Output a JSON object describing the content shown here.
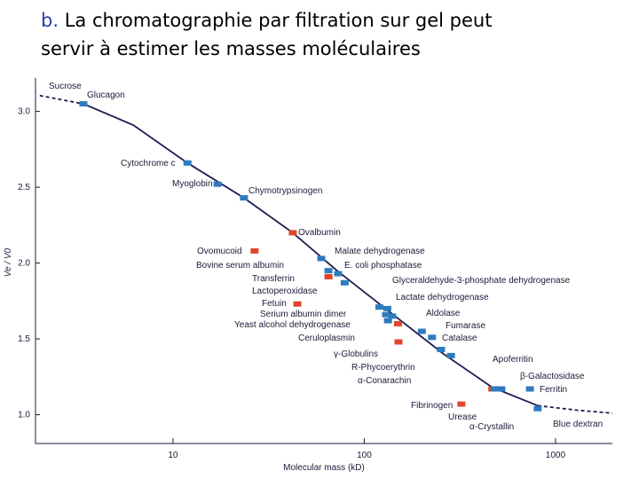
{
  "chart_data": {
    "type": "scatter",
    "title_prefix": "b.",
    "title_lines": [
      "La chromatographie par filtration sur gel peut",
      "servir à estimer les masses moléculaires"
    ],
    "xlabel": "Molecular mass (kD)",
    "ylabel": "Ve / V0",
    "xscale": "log",
    "xlim": [
      1.91,
      1983
    ],
    "ylim": [
      0.81,
      3.22
    ],
    "xticks": [
      10,
      100,
      1000
    ],
    "yticks": [
      {
        "value": 1,
        "label": "1.0"
      },
      1.5,
      {
        "value": 2,
        "label": "2.0"
      },
      2.5,
      {
        "value": 3,
        "label": "3.0"
      }
    ],
    "curve": {
      "color": "#1c1c50",
      "x": [
        2.01,
        3.4,
        6.2,
        11.9,
        23.5,
        42.3,
        72,
        132,
        260,
        467,
        807,
        1292,
        1983
      ],
      "y": [
        3.105,
        3.05,
        2.91,
        2.66,
        2.43,
        2.2,
        1.95,
        1.69,
        1.4,
        1.18,
        1.06,
        1.03,
        1.01
      ]
    },
    "colors": {
      "blue": "#2e7bbf",
      "red": "#e2452b"
    },
    "points": [
      {
        "label": "Glucagon",
        "x": 3.4,
        "y": 3.05,
        "color": "blue"
      },
      {
        "label": "Cytochrome c",
        "x": 11.9,
        "y": 2.66,
        "color": "blue"
      },
      {
        "label": "Myoglobin",
        "x": 17.1,
        "y": 2.52,
        "color": "blue"
      },
      {
        "label": "Chymotrypsinogen",
        "x": 23.5,
        "y": 2.43,
        "color": "blue"
      },
      {
        "label": "Ovalbumin",
        "x": 42.3,
        "y": 2.2,
        "color": "red"
      },
      {
        "label": "Ovomucoid",
        "x": 26.7,
        "y": 2.08,
        "color": "red"
      },
      {
        "label": "Malate dehydrogenase",
        "x": 59.6,
        "y": 2.03,
        "color": "blue"
      },
      {
        "label": "Bovine serum albumin",
        "x": 65,
        "y": 1.95,
        "color": "blue"
      },
      {
        "label": "E. coli phosphatase",
        "x": 73,
        "y": 1.93,
        "color": "blue"
      },
      {
        "label": "Transferrin",
        "x": 65,
        "y": 1.91,
        "color": "red"
      },
      {
        "label": "Glyceraldehyde-3-phosphate dehydrogenase",
        "x": 120,
        "y": 1.71,
        "color": "blue"
      },
      {
        "label": "Lactoperoxidase",
        "x": 79,
        "y": 1.87,
        "color": "blue"
      },
      {
        "label": "Lactate dehydrogenase",
        "x": 132,
        "y": 1.7,
        "color": "blue"
      },
      {
        "label": "Fetuin",
        "x": 44.7,
        "y": 1.73,
        "color": "red"
      },
      {
        "label": "Serium albumin dimer",
        "x": 130,
        "y": 1.66,
        "color": "blue"
      },
      {
        "label": "Aldolase",
        "x": 140,
        "y": 1.65,
        "color": "blue"
      },
      {
        "label": "Yeast alcohol dehydrogenase",
        "x": 133,
        "y": 1.62,
        "color": "blue"
      },
      {
        "label": "Fumarase",
        "x": 200,
        "y": 1.55,
        "color": "blue"
      },
      {
        "label": "Ceruloplasmin",
        "x": 151,
        "y": 1.48,
        "color": "red"
      },
      {
        "label": "Catalase",
        "x": 226,
        "y": 1.51,
        "color": "blue"
      },
      {
        "label": "γ-Globulins",
        "x": 150,
        "y": 1.6,
        "color": "red"
      },
      {
        "label": "R-Phycoerythrin",
        "x": 252,
        "y": 1.43,
        "color": "blue"
      },
      {
        "label": "α-Conarachin",
        "x": 284,
        "y": 1.39,
        "color": "blue"
      },
      {
        "label": "Apoferritin",
        "x": 467,
        "y": 1.17,
        "color": "red"
      },
      {
        "label": "β-Galactosidase",
        "x": 521,
        "y": 1.17,
        "color": "blue"
      },
      {
        "label": "Ferritin",
        "x": 735,
        "y": 1.17,
        "color": "blue"
      },
      {
        "label": "Fibrinogen",
        "x": 322,
        "y": 1.07,
        "color": "red"
      },
      {
        "label": "Urease",
        "x": 480,
        "y": 1.17,
        "color": "blue"
      },
      {
        "label": "α-Crystallin",
        "x": 807,
        "y": 1.04,
        "color": "blue"
      }
    ],
    "annotations": [
      "Sucrose",
      "Blue dextran"
    ]
  }
}
